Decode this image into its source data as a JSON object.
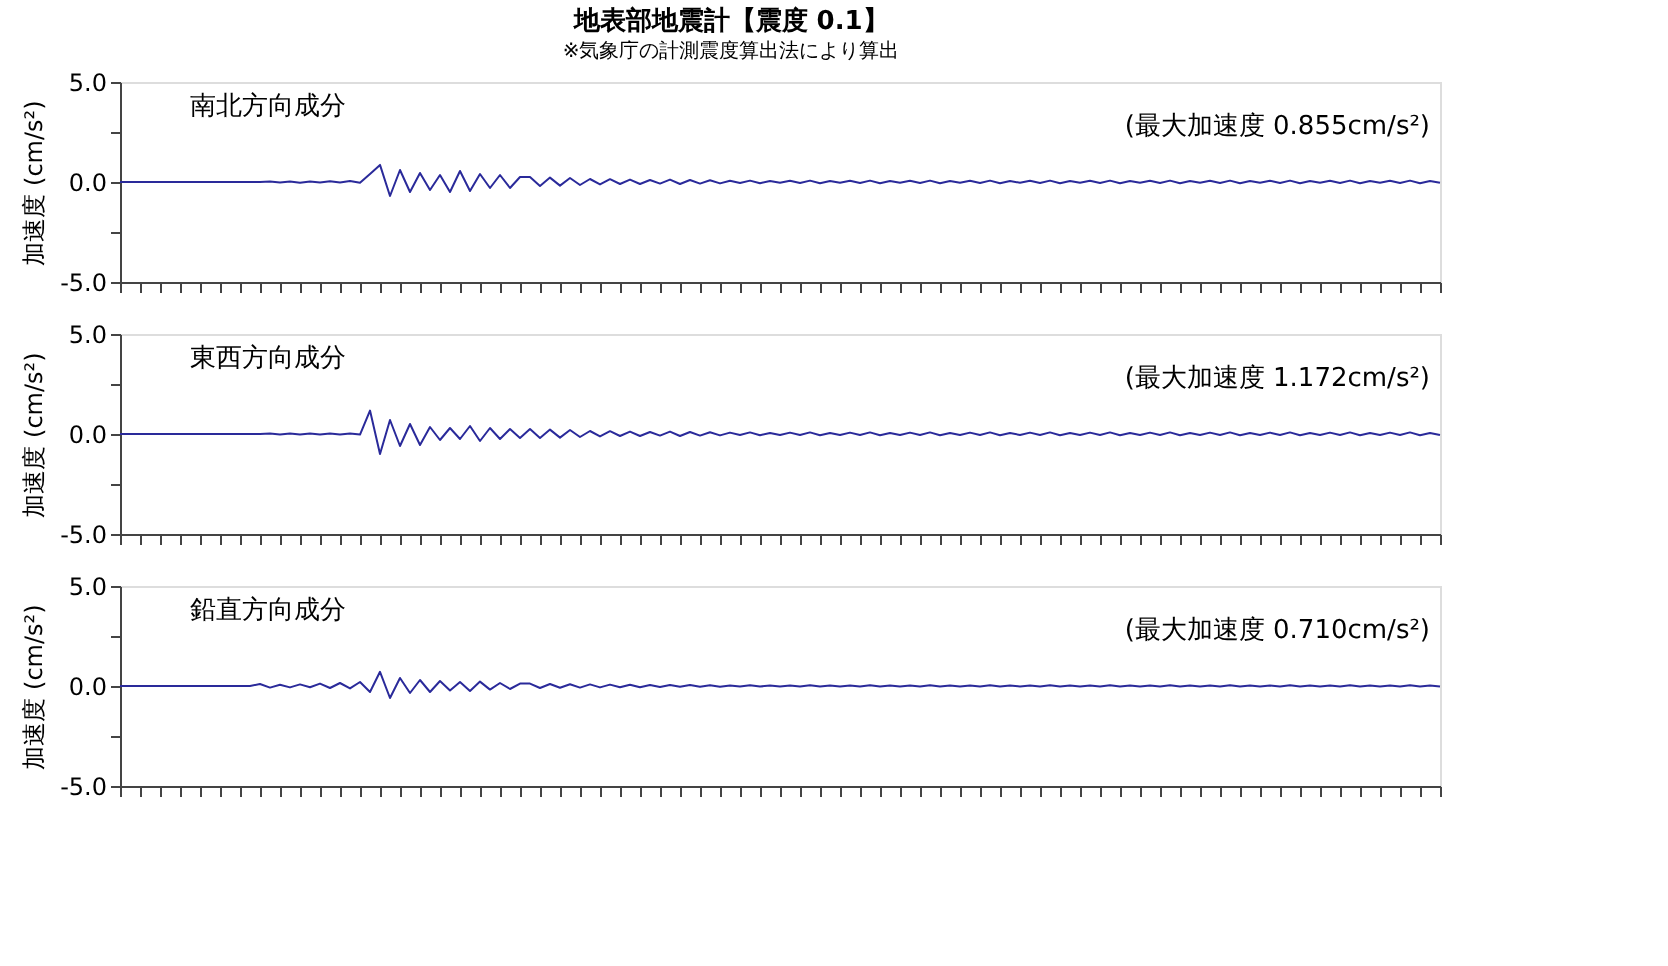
{
  "chart_data": [
    {
      "type": "line",
      "title": "地表部地震計【震度 0.1】",
      "subtitle": "※気象庁の計測震度算出法により算出",
      "ylabel": "加速度 (cm/s²)",
      "annotations": [
        "南北方向成分",
        "(最大加速度 0.855cm/s²)"
      ],
      "categories": [
        null,
        null,
        null,
        null,
        null,
        null,
        null,
        null,
        null,
        null,
        null,
        null,
        null,
        null,
        null,
        null,
        null,
        null,
        null,
        null,
        null,
        null,
        null,
        null,
        null,
        null,
        null,
        null,
        null,
        null,
        null,
        null,
        null,
        null,
        null,
        null,
        null,
        null,
        null,
        null,
        null,
        null,
        null,
        null,
        null,
        null,
        null,
        null,
        null,
        null,
        null,
        null,
        null,
        null,
        null,
        null,
        null,
        null,
        null,
        null,
        null,
        null,
        null,
        null,
        null,
        null,
        null,
        null,
        null,
        null,
        null,
        null,
        null,
        null,
        null,
        null,
        null,
        null,
        null,
        null,
        null,
        null,
        null,
        null,
        null,
        null,
        null,
        null,
        null,
        null,
        null,
        null,
        null,
        null,
        null,
        null,
        null,
        null,
        null,
        null,
        null,
        null,
        null,
        null,
        null,
        null,
        null,
        null,
        null,
        null,
        null,
        null,
        null,
        null,
        null,
        null,
        null,
        null,
        null,
        null,
        null,
        null,
        null,
        null,
        null,
        null,
        null,
        null,
        null,
        null,
        null,
        null,
        null
      ],
      "series": [
        {
          "color": "#2a2a9a",
          "values": [
            0,
            0,
            0,
            0,
            0,
            0,
            0,
            0,
            0,
            0,
            0,
            0,
            0,
            0,
            0,
            0.03,
            -0.03,
            0.02,
            -0.04,
            0.03,
            -0.02,
            0.04,
            -0.03,
            0.05,
            -0.04,
            0.4,
            0.855,
            -0.7,
            0.6,
            -0.5,
            0.45,
            -0.4,
            0.35,
            -0.5,
            0.55,
            -0.45,
            0.4,
            -0.3,
            0.35,
            -0.3,
            0.25,
            0.25,
            -0.2,
            0.22,
            -0.18,
            0.2,
            -0.15,
            0.15,
            -0.12,
            0.14,
            -0.1,
            0.12,
            -0.1,
            0.1,
            -0.08,
            0.12,
            -0.1,
            0.1,
            -0.08,
            0.09,
            -0.07,
            0.06,
            -0.05,
            0.07,
            -0.06,
            0.05,
            -0.04,
            0.06,
            -0.05,
            0.07,
            -0.06,
            0.05,
            -0.04,
            0.06,
            -0.05,
            0.07,
            -0.06,
            0.05,
            -0.04,
            0.06,
            -0.05,
            0.07,
            -0.06,
            0.05,
            -0.04,
            0.06,
            -0.05,
            0.07,
            -0.06,
            0.05,
            -0.04,
            0.06,
            -0.05,
            0.07,
            -0.06,
            0.05,
            -0.04,
            0.06,
            -0.05,
            0.07,
            -0.06,
            0.05,
            -0.04,
            0.06,
            -0.05,
            0.07,
            -0.06,
            0.05,
            -0.04,
            0.06,
            -0.05,
            0.07,
            -0.06,
            0.05,
            -0.04,
            0.06,
            -0.05,
            0.07,
            -0.06,
            0.05,
            -0.04,
            0.06,
            -0.05,
            0.07,
            -0.06,
            0.05,
            -0.04,
            0.06,
            -0.05,
            0.07,
            -0.06,
            0.05,
            -0.04
          ]
        }
      ],
      "ylim": [
        -5,
        5
      ],
      "yticks": [
        {
          "value": -5,
          "label": "-5.0"
        },
        {
          "value": -2.5,
          "label": null
        },
        {
          "value": 0,
          "label": "0.0"
        },
        {
          "value": 2.5,
          "label": null
        },
        {
          "value": 5,
          "label": "5.0"
        }
      ],
      "tick_labels": "y",
      "grid": false,
      "marker": "none",
      "line_style": "solid"
    },
    {
      "type": "line",
      "ylabel": "加速度 (cm/s²)",
      "annotations": [
        "東西方向成分",
        "(最大加速度 1.172cm/s²)"
      ],
      "categories": [
        null,
        null,
        null,
        null,
        null,
        null,
        null,
        null,
        null,
        null,
        null,
        null,
        null,
        null,
        null,
        null,
        null,
        null,
        null,
        null,
        null,
        null,
        null,
        null,
        null,
        null,
        null,
        null,
        null,
        null,
        null,
        null,
        null,
        null,
        null,
        null,
        null,
        null,
        null,
        null,
        null,
        null,
        null,
        null,
        null,
        null,
        null,
        null,
        null,
        null,
        null,
        null,
        null,
        null,
        null,
        null,
        null,
        null,
        null,
        null,
        null,
        null,
        null,
        null,
        null,
        null,
        null,
        null,
        null,
        null,
        null,
        null,
        null,
        null,
        null,
        null,
        null,
        null,
        null,
        null,
        null,
        null,
        null,
        null,
        null,
        null,
        null,
        null,
        null,
        null,
        null,
        null,
        null,
        null,
        null,
        null,
        null,
        null,
        null,
        null,
        null,
        null,
        null,
        null,
        null,
        null,
        null,
        null,
        null,
        null,
        null,
        null,
        null,
        null,
        null,
        null,
        null,
        null,
        null,
        null,
        null,
        null,
        null,
        null,
        null,
        null,
        null,
        null,
        null,
        null,
        null,
        null,
        null
      ],
      "series": [
        {
          "color": "#2a2a9a",
          "values": [
            0,
            0,
            0,
            0,
            0,
            0,
            0,
            0,
            0,
            0,
            0,
            0,
            0,
            0,
            0,
            0.02,
            -0.02,
            0.03,
            -0.03,
            0.02,
            -0.03,
            0.03,
            -0.02,
            0.03,
            -0.03,
            1.172,
            -1.0,
            0.7,
            -0.6,
            0.5,
            -0.55,
            0.35,
            -0.3,
            0.3,
            -0.25,
            0.4,
            -0.35,
            0.3,
            -0.25,
            0.25,
            -0.2,
            0.25,
            -0.2,
            0.22,
            -0.18,
            0.2,
            -0.15,
            0.15,
            -0.12,
            0.14,
            -0.1,
            0.12,
            -0.1,
            0.1,
            -0.08,
            0.12,
            -0.1,
            0.1,
            -0.08,
            0.09,
            -0.07,
            0.07,
            -0.05,
            0.08,
            -0.06,
            0.05,
            -0.05,
            0.07,
            -0.05,
            0.08,
            -0.06,
            0.05,
            -0.05,
            0.07,
            -0.05,
            0.08,
            -0.06,
            0.05,
            -0.05,
            0.07,
            -0.05,
            0.08,
            -0.06,
            0.05,
            -0.05,
            0.07,
            -0.05,
            0.08,
            -0.06,
            0.05,
            -0.05,
            0.07,
            -0.05,
            0.08,
            -0.06,
            0.05,
            -0.05,
            0.07,
            -0.05,
            0.08,
            -0.06,
            0.05,
            -0.05,
            0.07,
            -0.05,
            0.08,
            -0.06,
            0.05,
            -0.05,
            0.07,
            -0.05,
            0.08,
            -0.06,
            0.05,
            -0.05,
            0.07,
            -0.05,
            0.08,
            -0.06,
            0.05,
            -0.05,
            0.07,
            -0.05,
            0.08,
            -0.06,
            0.05,
            -0.05,
            0.07,
            -0.05,
            0.08,
            -0.06,
            0.05,
            -0.05
          ]
        }
      ],
      "ylim": [
        -5,
        5
      ],
      "yticks": [
        {
          "value": -5,
          "label": "-5.0"
        },
        {
          "value": -2.5,
          "label": null
        },
        {
          "value": 0,
          "label": "0.0"
        },
        {
          "value": 2.5,
          "label": null
        },
        {
          "value": 5,
          "label": "5.0"
        }
      ],
      "tick_labels": "y",
      "grid": false,
      "marker": "none",
      "line_style": "solid"
    },
    {
      "type": "line",
      "ylabel": "加速度 (cm/s²)",
      "annotations": [
        "鉛直方向成分",
        "(最大加速度 0.710cm/s²)"
      ],
      "categories": [
        null,
        null,
        null,
        null,
        null,
        null,
        null,
        null,
        null,
        null,
        null,
        null,
        null,
        null,
        null,
        null,
        null,
        null,
        null,
        null,
        null,
        null,
        null,
        null,
        null,
        null,
        null,
        null,
        null,
        null,
        null,
        null,
        null,
        null,
        null,
        null,
        null,
        null,
        null,
        null,
        null,
        null,
        null,
        null,
        null,
        null,
        null,
        null,
        null,
        null,
        null,
        null,
        null,
        null,
        null,
        null,
        null,
        null,
        null,
        null,
        null,
        null,
        null,
        null,
        null,
        null,
        null,
        null,
        null,
        null,
        null,
        null,
        null,
        null,
        null,
        null,
        null,
        null,
        null,
        null,
        null,
        null,
        null,
        null,
        null,
        null,
        null,
        null,
        null,
        null,
        null,
        null,
        null,
        null,
        null,
        null,
        null,
        null,
        null,
        null,
        null,
        null,
        null,
        null,
        null,
        null,
        null,
        null,
        null,
        null,
        null,
        null,
        null,
        null,
        null,
        null,
        null,
        null,
        null,
        null,
        null,
        null,
        null,
        null,
        null,
        null,
        null,
        null,
        null,
        null,
        null,
        null,
        null
      ],
      "series": [
        {
          "color": "#2a2a9a",
          "values": [
            0,
            0,
            0,
            0,
            0,
            0,
            0,
            0,
            0,
            0,
            0,
            0,
            0,
            0,
            0.1,
            -0.08,
            0.06,
            -0.07,
            0.08,
            -0.06,
            0.12,
            -0.1,
            0.15,
            -0.12,
            0.2,
            -0.3,
            0.71,
            -0.6,
            0.4,
            -0.35,
            0.3,
            -0.3,
            0.25,
            -0.22,
            0.2,
            -0.25,
            0.22,
            -0.18,
            0.15,
            -0.15,
            0.12,
            0.12,
            -0.1,
            0.1,
            -0.09,
            0.09,
            -0.08,
            0.08,
            -0.07,
            0.07,
            -0.06,
            0.06,
            -0.06,
            0.05,
            -0.05,
            0.05,
            -0.04,
            0.05,
            -0.04,
            0.04,
            -0.04,
            0.03,
            -0.03,
            0.04,
            -0.03,
            0.03,
            -0.02,
            0.03,
            -0.03,
            0.04,
            -0.03,
            0.03,
            -0.02,
            0.03,
            -0.03,
            0.04,
            -0.03,
            0.03,
            -0.02,
            0.03,
            -0.03,
            0.04,
            -0.03,
            0.03,
            -0.02,
            0.03,
            -0.03,
            0.04,
            -0.03,
            0.03,
            -0.02,
            0.03,
            -0.03,
            0.04,
            -0.03,
            0.03,
            -0.02,
            0.03,
            -0.03,
            0.04,
            -0.03,
            0.03,
            -0.02,
            0.03,
            -0.03,
            0.04,
            -0.03,
            0.03,
            -0.02,
            0.03,
            -0.03,
            0.04,
            -0.03,
            0.03,
            -0.02,
            0.03,
            -0.03,
            0.04,
            -0.03,
            0.03,
            -0.02,
            0.03,
            -0.03,
            0.04,
            -0.03,
            0.03,
            -0.02,
            0.03,
            -0.03,
            0.04,
            -0.03,
            0.03,
            -0.02
          ]
        }
      ],
      "ylim": [
        -5,
        5
      ],
      "yticks": [
        {
          "value": -5,
          "label": "-5.0"
        },
        {
          "value": -2.5,
          "label": null
        },
        {
          "value": 0,
          "label": "0.0"
        },
        {
          "value": 2.5,
          "label": null
        },
        {
          "value": 5,
          "label": "5.0"
        }
      ],
      "tick_labels": "y",
      "grid": false,
      "marker": "none",
      "line_style": "solid"
    }
  ]
}
